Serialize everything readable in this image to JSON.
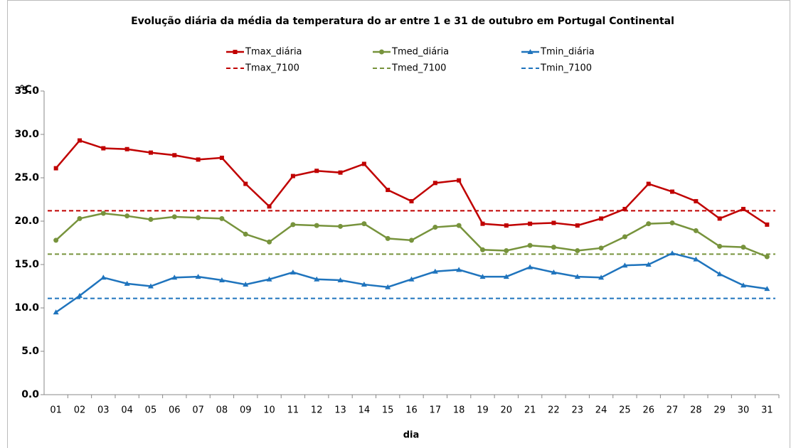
{
  "chart_data": {
    "type": "line",
    "title": "Evolução diária da média da temperatura do ar  entre 1 e 31 de outubro em Portugal Continental",
    "x_label": "dia",
    "y_label": "°C",
    "categories": [
      "01",
      "02",
      "03",
      "04",
      "05",
      "06",
      "07",
      "08",
      "09",
      "10",
      "11",
      "12",
      "13",
      "14",
      "15",
      "16",
      "17",
      "18",
      "19",
      "20",
      "21",
      "22",
      "23",
      "24",
      "25",
      "26",
      "27",
      "28",
      "29",
      "30",
      "31"
    ],
    "series": [
      {
        "name": "Tmax_diária",
        "color": "#c00000",
        "marker": "square",
        "values": [
          26.1,
          29.3,
          28.4,
          28.3,
          27.9,
          27.6,
          27.1,
          27.3,
          24.3,
          21.7,
          25.2,
          25.8,
          25.6,
          26.6,
          23.6,
          22.3,
          24.4,
          24.7,
          19.7,
          19.5,
          19.7,
          19.8,
          19.5,
          20.3,
          21.4,
          24.3,
          23.4,
          22.3,
          20.3,
          21.4,
          19.6
        ]
      },
      {
        "name": "Tmed_diária",
        "color": "#77933c",
        "marker": "circle",
        "values": [
          17.8,
          20.3,
          20.9,
          20.6,
          20.2,
          20.5,
          20.4,
          20.3,
          18.5,
          17.6,
          19.6,
          19.5,
          19.4,
          19.7,
          18.0,
          17.8,
          19.3,
          19.5,
          16.7,
          16.6,
          17.2,
          17.0,
          16.6,
          16.9,
          18.2,
          19.7,
          19.8,
          18.9,
          17.1,
          17.0,
          15.9
        ]
      },
      {
        "name": "Tmin_diária",
        "color": "#1f74bd",
        "marker": "triangle",
        "values": [
          9.5,
          11.4,
          13.5,
          12.8,
          12.5,
          13.5,
          13.6,
          13.2,
          12.7,
          13.3,
          14.1,
          13.3,
          13.2,
          12.7,
          12.4,
          13.3,
          14.2,
          14.4,
          13.6,
          13.6,
          14.7,
          14.1,
          13.6,
          13.5,
          14.9,
          15.0,
          16.3,
          15.6,
          13.9,
          12.6,
          12.2
        ]
      }
    ],
    "reference_lines": [
      {
        "name": "Tmax_7100",
        "color": "#c00000",
        "value": 21.2
      },
      {
        "name": "Tmed_7100",
        "color": "#77933c",
        "value": 16.2
      },
      {
        "name": "Tmin_7100",
        "color": "#1f74bd",
        "value": 11.1
      }
    ],
    "ylim": [
      0,
      35
    ],
    "yticks": [
      {
        "value": 0,
        "label": "0.0"
      },
      {
        "value": 5,
        "label": "5.0"
      },
      {
        "value": 10,
        "label": "10.0"
      },
      {
        "value": 15,
        "label": "15.0"
      },
      {
        "value": 20,
        "label": "20.0"
      },
      {
        "value": 25,
        "label": "25.0"
      },
      {
        "value": 30,
        "label": "30.0"
      },
      {
        "value": 35,
        "label": "35.0"
      }
    ],
    "grid": false
  }
}
